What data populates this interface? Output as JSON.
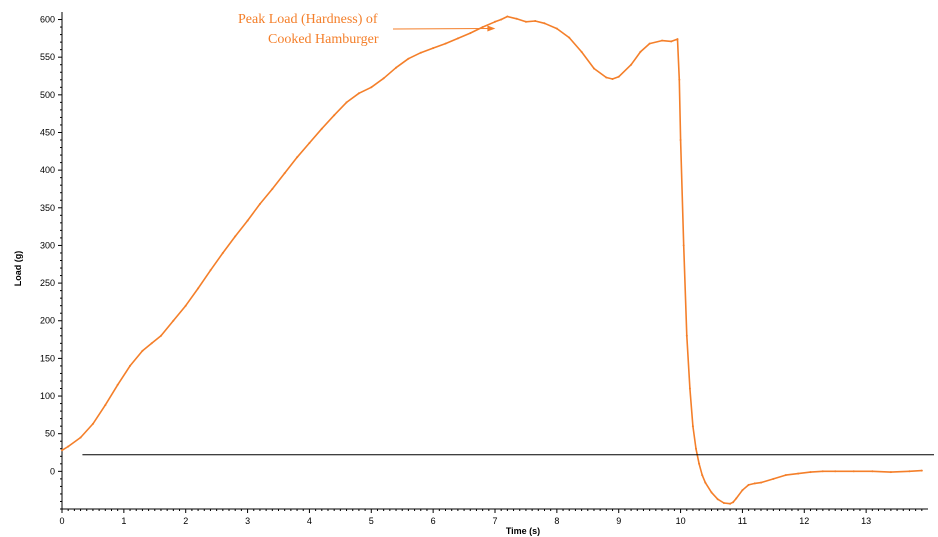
{
  "chart_data": {
    "type": "line",
    "title": "",
    "xlabel": "Time (s)",
    "ylabel": "Load (g)",
    "xlim": [
      0,
      14
    ],
    "ylim": [
      -50,
      610
    ],
    "xticks": [
      0,
      1,
      2,
      3,
      4,
      5,
      6,
      7,
      8,
      9,
      10,
      11,
      12,
      13
    ],
    "yticks": [
      0,
      50,
      100,
      150,
      200,
      250,
      300,
      350,
      400,
      450,
      500,
      550,
      600
    ],
    "grid": false,
    "legend": "none",
    "series_color": "#f47f2a",
    "annotation": {
      "lines": [
        "Peak Load (Hardness)  of",
        "Cooked Hamburger"
      ],
      "color": "#f47f2a",
      "points_to": [
        7.2,
        604
      ]
    },
    "reference_line": {
      "y": 22,
      "x_start": 0.33,
      "x_end": 14,
      "color": "#000000"
    },
    "series": [
      {
        "x": [
          0,
          0.1,
          0.3,
          0.5,
          0.7,
          0.9,
          1.1,
          1.3,
          1.45,
          1.6,
          1.8,
          2.0,
          2.2,
          2.4,
          2.6,
          2.8,
          3.0,
          3.2,
          3.4,
          3.6,
          3.8,
          4.0,
          4.2,
          4.4,
          4.6,
          4.8,
          5.0,
          5.2,
          5.4,
          5.6,
          5.8,
          6.0,
          6.2,
          6.4,
          6.6,
          6.8,
          7.0,
          7.1,
          7.2,
          7.35,
          7.5,
          7.65,
          7.8,
          8.0,
          8.2,
          8.4,
          8.6,
          8.8,
          8.9,
          9.0,
          9.2,
          9.35,
          9.5,
          9.7,
          9.85,
          9.95,
          9.98,
          10.0,
          10.05,
          10.1,
          10.15,
          10.2,
          10.25,
          10.3,
          10.35,
          10.4,
          10.5,
          10.6,
          10.7,
          10.8,
          10.85,
          10.9,
          11.0,
          11.1,
          11.2,
          11.3,
          11.5,
          11.7,
          11.9,
          12.1,
          12.3,
          12.5,
          12.8,
          13.1,
          13.4,
          13.7,
          13.9
        ],
        "y": [
          28,
          33,
          45,
          63,
          88,
          115,
          140,
          160,
          170,
          180,
          200,
          220,
          243,
          267,
          290,
          312,
          333,
          355,
          375,
          396,
          417,
          436,
          455,
          473,
          490,
          502,
          510,
          522,
          536,
          548,
          556,
          562,
          568,
          575,
          582,
          590,
          597,
          600,
          604,
          601,
          597,
          598,
          595,
          588,
          576,
          557,
          535,
          523,
          521,
          524,
          540,
          557,
          568,
          572,
          571,
          574,
          520,
          440,
          300,
          180,
          110,
          60,
          30,
          10,
          -5,
          -15,
          -28,
          -37,
          -42,
          -43,
          -41,
          -36,
          -25,
          -18,
          -16,
          -15,
          -10,
          -5,
          -3,
          -1,
          0,
          0,
          0,
          0,
          -1,
          0,
          1
        ]
      }
    ]
  }
}
